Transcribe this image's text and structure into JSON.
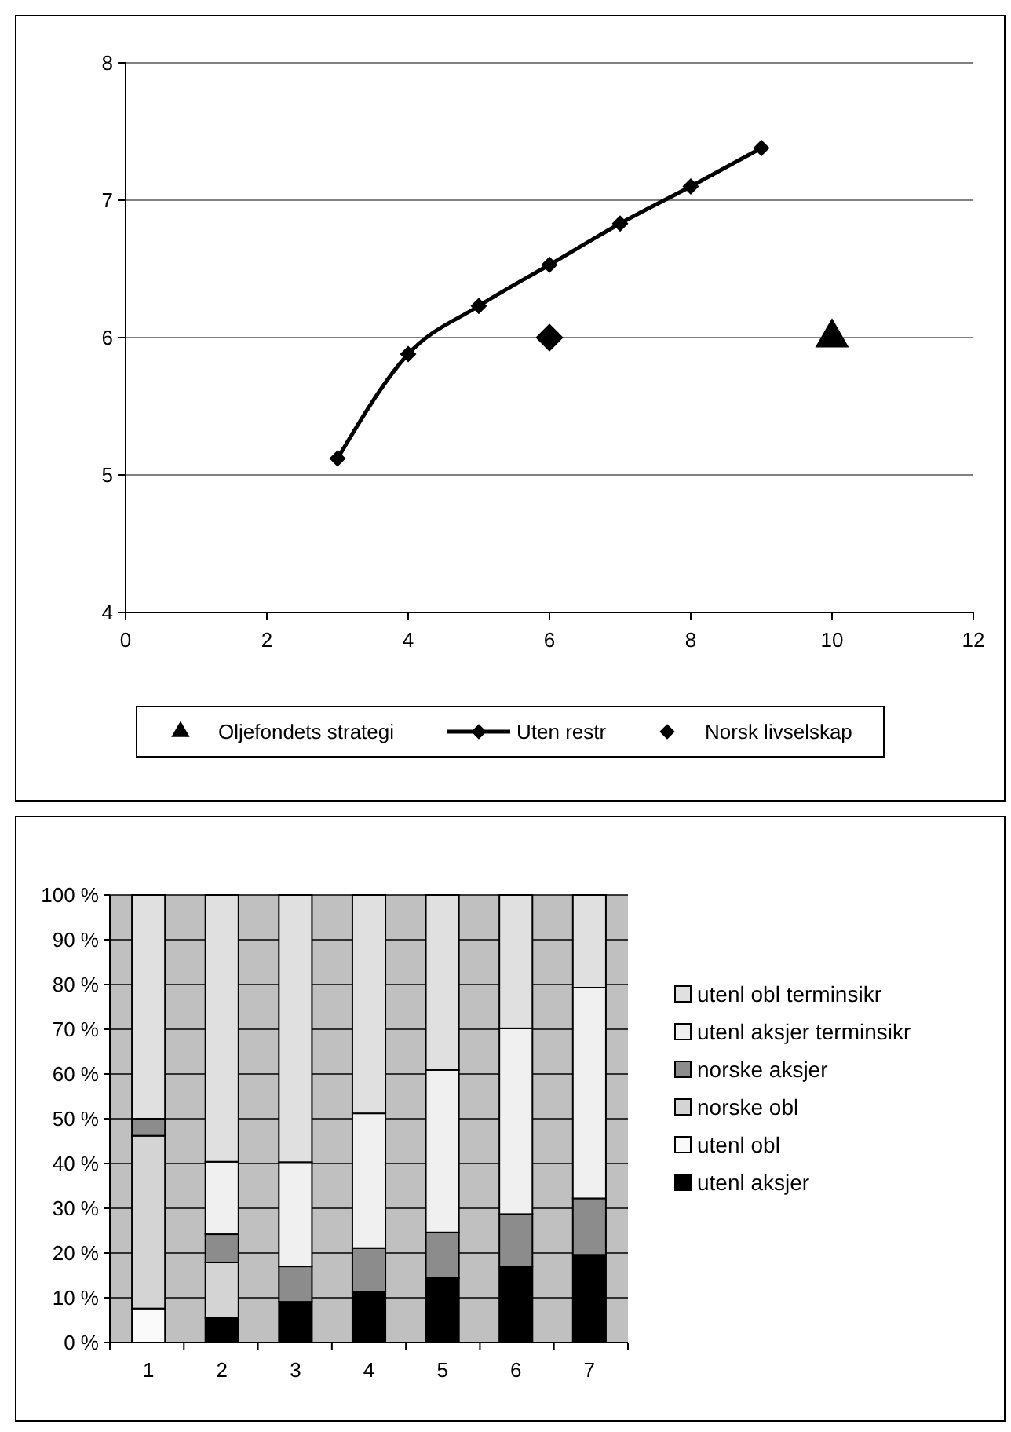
{
  "chart_data": [
    {
      "type": "line",
      "xlim": [
        0,
        12
      ],
      "xticks": [
        0,
        2,
        4,
        6,
        8,
        10,
        12
      ],
      "ylim": [
        4,
        8
      ],
      "yticks": [
        4,
        5,
        6,
        7,
        8
      ],
      "grid": "y",
      "legend": "bottom",
      "series": [
        {
          "name": "Oljefondets strategi",
          "type": "scatter",
          "marker": "triangle",
          "color": "#000000",
          "x": [
            10
          ],
          "values": [
            6
          ]
        },
        {
          "name": "Uten restr",
          "type": "line",
          "marker": "diamond",
          "color": "#000000",
          "x": [
            3,
            4,
            5,
            6,
            7,
            8,
            9
          ],
          "values": [
            5.12,
            5.88,
            6.23,
            6.53,
            6.83,
            7.1,
            7.38
          ]
        },
        {
          "name": "Norsk livselskap",
          "type": "scatter",
          "marker": "diamond",
          "color": "#000000",
          "x": [
            6
          ],
          "values": [
            6
          ]
        }
      ]
    },
    {
      "type": "bar",
      "stacked": true,
      "categories": [
        "1",
        "2",
        "3",
        "4",
        "5",
        "6",
        "7"
      ],
      "ylim": [
        0,
        100
      ],
      "yticks": [
        {
          "value": 0,
          "label": "0 %"
        },
        {
          "value": 10,
          "label": "10 %"
        },
        {
          "value": 20,
          "label": "20 %"
        },
        {
          "value": 30,
          "label": "30 %"
        },
        {
          "value": 40,
          "label": "40 %"
        },
        {
          "value": 50,
          "label": "50 %"
        },
        {
          "value": 60,
          "label": "60 %"
        },
        {
          "value": 70,
          "label": "70 %"
        },
        {
          "value": 80,
          "label": "80 %"
        },
        {
          "value": 90,
          "label": "90 %"
        },
        {
          "value": 100,
          "label": "100 %"
        }
      ],
      "grid": "y",
      "legend": "right",
      "series": [
        {
          "name": "utenl aksjer",
          "color": "#000000",
          "values": [
            0,
            5.5,
            9.1,
            11.3,
            14.4,
            17.0,
            19.6
          ]
        },
        {
          "name": "utenl obl",
          "color": "#fafafa",
          "values": [
            7.6,
            0,
            0,
            0,
            0,
            0,
            0
          ]
        },
        {
          "name": "norske obl",
          "color": "#d4d4d4",
          "values": [
            38.6,
            12.4,
            0,
            0,
            0,
            0,
            0
          ]
        },
        {
          "name": "norske aksjer",
          "color": "#8c8c8c",
          "values": [
            3.8,
            6.3,
            7.9,
            9.8,
            10.2,
            11.7,
            12.6
          ]
        },
        {
          "name": "utenl aksjer terminsikr",
          "color": "#f0f0f0",
          "values": [
            0,
            16.2,
            23.3,
            30.1,
            36.3,
            41.5,
            47.1
          ]
        },
        {
          "name": "utenl obl terminsikr",
          "color": "#e0e0e0",
          "values": [
            50,
            59.6,
            59.7,
            48.8,
            39.1,
            29.8,
            20.7
          ]
        }
      ]
    }
  ]
}
